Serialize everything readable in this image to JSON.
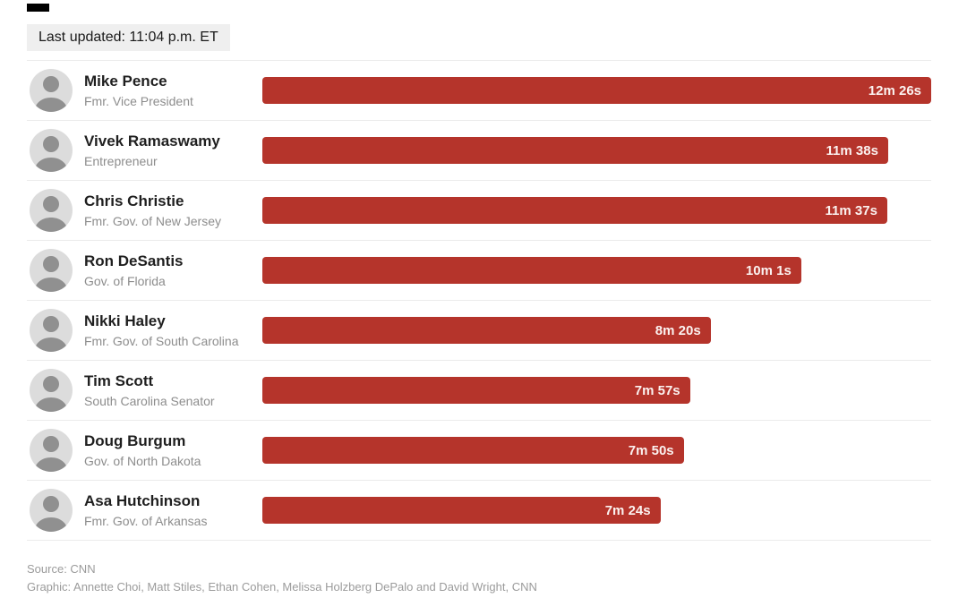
{
  "header": {
    "last_updated": "Last updated: 11:04 p.m. ET"
  },
  "colors": {
    "bar": "#b5342b",
    "bar_label_text": "#fbf2f0",
    "updated_badge_bg": "#efefef"
  },
  "chart_data": {
    "type": "bar",
    "orientation": "horizontal",
    "title": "",
    "value_unit": "speaking time (minutes and seconds)",
    "max_value_seconds": 746,
    "legend": "none",
    "grid": false,
    "rows": [
      {
        "name": "Mike Pence",
        "role": "Fmr. Vice President",
        "time_label": "12m 26s",
        "seconds": 746
      },
      {
        "name": "Vivek Ramaswamy",
        "role": "Entrepreneur",
        "time_label": "11m 38s",
        "seconds": 698
      },
      {
        "name": "Chris Christie",
        "role": "Fmr. Gov. of New Jersey",
        "time_label": "11m 37s",
        "seconds": 697
      },
      {
        "name": "Ron DeSantis",
        "role": "Gov. of Florida",
        "time_label": "10m 1s",
        "seconds": 601
      },
      {
        "name": "Nikki Haley",
        "role": "Fmr. Gov. of South Carolina",
        "time_label": "8m 20s",
        "seconds": 500
      },
      {
        "name": "Tim Scott",
        "role": "South Carolina Senator",
        "time_label": "7m 57s",
        "seconds": 477
      },
      {
        "name": "Doug Burgum",
        "role": "Gov. of North Dakota",
        "time_label": "7m 50s",
        "seconds": 470
      },
      {
        "name": "Asa Hutchinson",
        "role": "Fmr. Gov. of Arkansas",
        "time_label": "7m 24s",
        "seconds": 444
      }
    ]
  },
  "footer": {
    "source": "Source: CNN",
    "credit": "Graphic: Annette Choi, Matt Stiles, Ethan Cohen, Melissa Holzberg DePalo and David Wright, CNN"
  }
}
